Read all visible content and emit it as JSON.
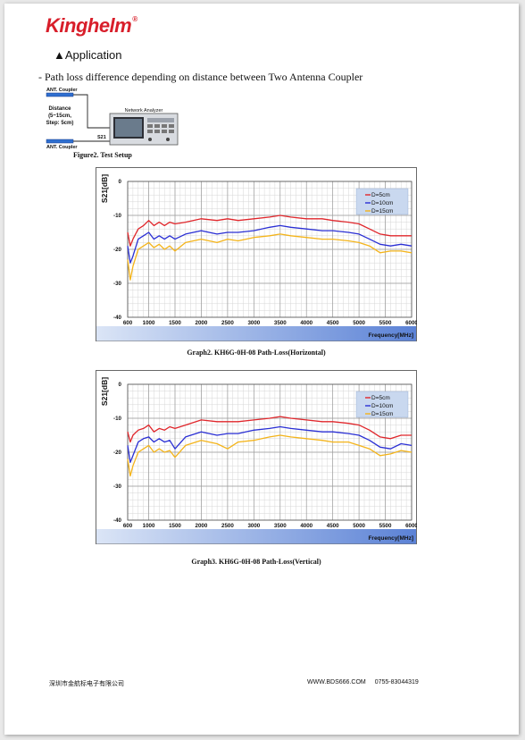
{
  "header": {
    "brand": "Kinghelm",
    "trademark": "®"
  },
  "section": {
    "bullet": "▲",
    "title": "Application"
  },
  "description": "- Path loss difference depending on distance between Two Antenna Coupler",
  "setup": {
    "coupler_top": "ANT. Coupler",
    "distance_line1": "Distance",
    "distance_line2": "(5~15cm,",
    "distance_line3": "Step: 5cm)",
    "coupler_bottom": "ANT. Coupler",
    "analyzer_label": "Network Analyzer",
    "s21": "S21",
    "caption": "Figure2. Test Setup"
  },
  "chart_data": [
    {
      "type": "line",
      "xlabel": "Frequency[MHz]",
      "ylabel": "S21[dB]",
      "xlim": [
        600,
        6000
      ],
      "ylim": [
        -40,
        0
      ],
      "xticks": [
        "600",
        "1000",
        "1500",
        "2000",
        "2500",
        "3000",
        "3500",
        "4000",
        "4500",
        "5000",
        "5500",
        "6000"
      ],
      "yticks": [
        "0",
        "-10",
        "-20",
        "-30",
        "-40"
      ],
      "grid": true,
      "legend": "top-right",
      "series": [
        {
          "name": "D=5cm",
          "color": "#e0262b",
          "x": [
            600,
            650,
            700,
            800,
            900,
            1000,
            1100,
            1200,
            1300,
            1400,
            1500,
            1700,
            2000,
            2300,
            2500,
            2700,
            3000,
            3300,
            3500,
            3700,
            4000,
            4300,
            4500,
            4800,
            5000,
            5200,
            5400,
            5600,
            5800,
            6000
          ],
          "y": [
            -15,
            -19,
            -17,
            -14,
            -13,
            -11.5,
            -13,
            -12,
            -13,
            -12,
            -12.5,
            -12,
            -11,
            -11.5,
            -11,
            -11.5,
            -11,
            -10.5,
            -10,
            -10.5,
            -11,
            -11,
            -11.5,
            -12,
            -12.5,
            -14,
            -15.5,
            -16,
            -16,
            -16
          ]
        },
        {
          "name": "D=10cm",
          "color": "#2a2fd4",
          "x": [
            600,
            650,
            700,
            800,
            900,
            1000,
            1100,
            1200,
            1300,
            1400,
            1500,
            1700,
            2000,
            2300,
            2500,
            2700,
            3000,
            3300,
            3500,
            3700,
            4000,
            4300,
            4500,
            4800,
            5000,
            5200,
            5400,
            5600,
            5800,
            6000
          ],
          "y": [
            -19,
            -24,
            -22,
            -17,
            -16,
            -15,
            -17,
            -16,
            -17,
            -16,
            -17,
            -15.5,
            -14.5,
            -15.5,
            -15,
            -15,
            -14.5,
            -13.5,
            -13,
            -13.5,
            -14,
            -14.5,
            -14.5,
            -15,
            -15.5,
            -17,
            -18.5,
            -19,
            -18.5,
            -19
          ]
        },
        {
          "name": "D=15cm",
          "color": "#f4b41a",
          "x": [
            600,
            650,
            700,
            800,
            900,
            1000,
            1100,
            1200,
            1300,
            1400,
            1500,
            1700,
            2000,
            2300,
            2500,
            2700,
            3000,
            3300,
            3500,
            3700,
            4000,
            4300,
            4500,
            4800,
            5000,
            5200,
            5400,
            5600,
            5800,
            6000
          ],
          "y": [
            -23,
            -29,
            -25,
            -20,
            -19,
            -18,
            -19.5,
            -18.5,
            -20,
            -19,
            -20.5,
            -18,
            -17,
            -18,
            -17,
            -17.5,
            -16.5,
            -16,
            -15.5,
            -16,
            -16.5,
            -17,
            -17,
            -17.5,
            -18,
            -19,
            -21,
            -20.5,
            -20.5,
            -21
          ]
        }
      ]
    },
    {
      "type": "line",
      "xlabel": "Frequency[MHz]",
      "ylabel": "S21[dB]",
      "xlim": [
        600,
        6000
      ],
      "ylim": [
        -40,
        0
      ],
      "xticks": [
        "600",
        "1000",
        "1500",
        "2000",
        "2500",
        "3000",
        "3500",
        "4000",
        "4500",
        "5000",
        "5500",
        "6000"
      ],
      "yticks": [
        "0",
        "-10",
        "-20",
        "-30",
        "-40"
      ],
      "grid": true,
      "legend": "top-right",
      "series": [
        {
          "name": "D=5cm",
          "color": "#e0262b",
          "x": [
            600,
            650,
            700,
            800,
            900,
            1000,
            1100,
            1200,
            1300,
            1400,
            1500,
            1700,
            2000,
            2300,
            2500,
            2700,
            3000,
            3300,
            3500,
            3700,
            4000,
            4300,
            4500,
            4800,
            5000,
            5200,
            5400,
            5600,
            5800,
            6000
          ],
          "y": [
            -14,
            -17,
            -15,
            -13.5,
            -13,
            -12,
            -14,
            -13,
            -13.5,
            -12.5,
            -13,
            -12,
            -10.5,
            -11,
            -11,
            -11,
            -10.5,
            -10,
            -9.5,
            -10,
            -10.5,
            -11,
            -11,
            -11.5,
            -12,
            -13.5,
            -15.5,
            -16,
            -15,
            -15
          ]
        },
        {
          "name": "D=10cm",
          "color": "#2a2fd4",
          "x": [
            600,
            650,
            700,
            800,
            900,
            1000,
            1100,
            1200,
            1300,
            1400,
            1500,
            1700,
            2000,
            2300,
            2500,
            2700,
            3000,
            3300,
            3500,
            3700,
            4000,
            4300,
            4500,
            4800,
            5000,
            5200,
            5400,
            5600,
            5800,
            6000
          ],
          "y": [
            -18,
            -23,
            -21,
            -17,
            -16,
            -15.5,
            -17,
            -16,
            -17,
            -16.5,
            -19,
            -15.5,
            -14,
            -15,
            -14.5,
            -14.5,
            -13.5,
            -13,
            -12.5,
            -13,
            -13.5,
            -14,
            -14,
            -14.5,
            -15,
            -16.5,
            -18.5,
            -19,
            -17.5,
            -18
          ]
        },
        {
          "name": "D=15cm",
          "color": "#f4b41a",
          "x": [
            600,
            650,
            700,
            800,
            900,
            1000,
            1100,
            1200,
            1300,
            1400,
            1500,
            1700,
            2000,
            2300,
            2500,
            2700,
            3000,
            3300,
            3500,
            3700,
            4000,
            4300,
            4500,
            4800,
            5000,
            5200,
            5400,
            5600,
            5800,
            6000
          ],
          "y": [
            -22,
            -27,
            -24,
            -20,
            -19,
            -18,
            -20,
            -19,
            -20,
            -19.5,
            -21.5,
            -18,
            -16.5,
            -17.5,
            -19,
            -17,
            -16.5,
            -15.5,
            -15,
            -15.5,
            -16,
            -16.5,
            -17,
            -17,
            -18,
            -19,
            -21,
            -20.5,
            -19.5,
            -20
          ]
        }
      ]
    }
  ],
  "graph_captions": [
    "Graph2. KH6G-0H-08 Path-Loss(Horizontal)",
    "Graph3. KH6G-0H-08 Path-Loss(Vertical)"
  ],
  "footer": {
    "company": "深圳市金航标电子有限公司",
    "website": "WWW.BDS666.COM",
    "phone": "0755-83044319"
  }
}
